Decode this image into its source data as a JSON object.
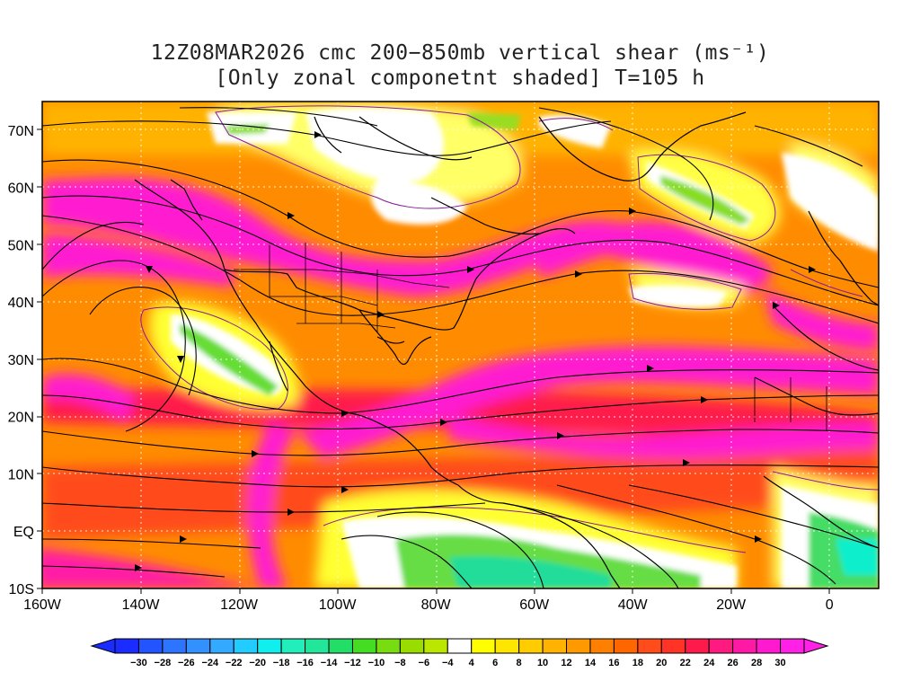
{
  "title": {
    "line1": "12Z08MAR2026 cmc 200−850mb vertical shear (ms⁻¹)",
    "line2": "[Only zonal componetnt shaded] T=105 h"
  },
  "map": {
    "lat_labels": [
      "70N",
      "60N",
      "50N",
      "40N",
      "30N",
      "20N",
      "10N",
      "EQ",
      "10S"
    ],
    "lat_values": [
      70,
      60,
      50,
      40,
      30,
      20,
      10,
      0,
      -10
    ],
    "lon_labels": [
      "160W",
      "140W",
      "120W",
      "100W",
      "80W",
      "60W",
      "40W",
      "20W",
      "0"
    ],
    "lon_values": [
      -160,
      -140,
      -120,
      -100,
      -80,
      -60,
      -40,
      -20,
      0
    ],
    "lon_range": [
      -160,
      10
    ],
    "lat_range": [
      -10,
      75
    ]
  },
  "colorbar": {
    "labels": [
      "-30",
      "-28",
      "-26",
      "-24",
      "-22",
      "-20",
      "-18",
      "-16",
      "-14",
      "-12",
      "-10",
      "-8",
      "-6",
      "-4",
      "4",
      "6",
      "8",
      "10",
      "12",
      "14",
      "16",
      "18",
      "20",
      "22",
      "24",
      "26",
      "28",
      "30"
    ],
    "colors": [
      "#1a2cff",
      "#2255ff",
      "#2d74ff",
      "#3391ff",
      "#33aaff",
      "#22ccff",
      "#11eeee",
      "#22eebb",
      "#22e699",
      "#22dd66",
      "#44dd22",
      "#77dd11",
      "#99dd00",
      "#bbe600",
      "#ffffff",
      "#ffff00",
      "#ffe600",
      "#ffcc00",
      "#ffb300",
      "#ff9900",
      "#ff8000",
      "#ff6600",
      "#ff4c1a",
      "#ff3326",
      "#ff1a4c",
      "#ff1a80",
      "#ff1aa6",
      "#ff1ad0",
      "#ff22e6"
    ]
  },
  "legend_colors": {
    "strong_westerly": "#ff1ad0",
    "moderate": "#ff8000",
    "weak": "#ffff00",
    "easterly": "#44dd22",
    "coast": "#000000",
    "contour": "#8a1a9b"
  }
}
